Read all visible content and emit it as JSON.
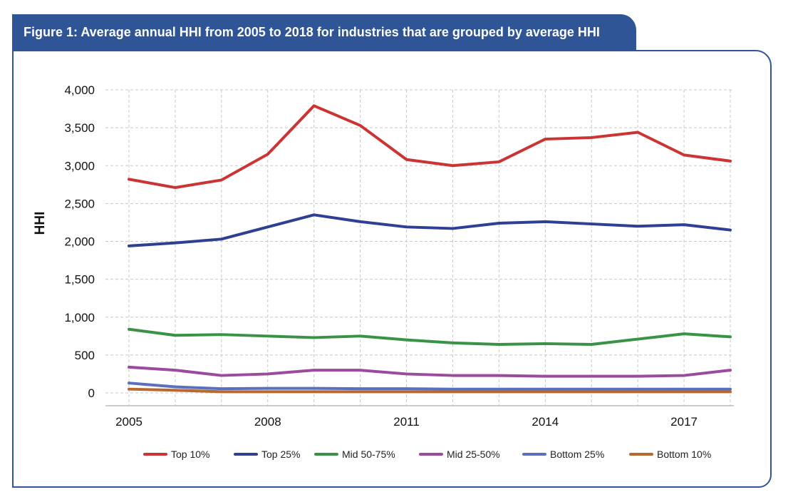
{
  "figure_title": "Figure 1: Average annual HHI from 2005 to 2018 for industries that are grouped by average HHI",
  "chart_data": {
    "type": "line",
    "title": "Figure 1: Average annual HHI from 2005 to 2018 for industries that are grouped by average HHI",
    "xlabel": "",
    "ylabel": "HHI",
    "x": [
      2005,
      2006,
      2007,
      2008,
      2009,
      2010,
      2011,
      2012,
      2013,
      2014,
      2015,
      2016,
      2017,
      2018
    ],
    "xticks": [
      "2005",
      "2008",
      "2011",
      "2014",
      "2017"
    ],
    "xlim": [
      2005,
      2018
    ],
    "yticks": [
      "0",
      "500",
      "1,000",
      "1,500",
      "2,000",
      "2,500",
      "3,000",
      "3,500",
      "4,000"
    ],
    "ylim": [
      0,
      4000
    ],
    "grid": true,
    "legend_position": "bottom",
    "series": [
      {
        "name": "Top 10%",
        "color": "#cc3333",
        "values": [
          2820,
          2710,
          2810,
          3150,
          3790,
          3530,
          3080,
          3000,
          3050,
          3350,
          3370,
          3440,
          3140,
          3060
        ]
      },
      {
        "name": "Top 25%",
        "color": "#2e3f94",
        "values": [
          1940,
          1980,
          2030,
          2190,
          2350,
          2260,
          2190,
          2170,
          2240,
          2260,
          2230,
          2200,
          2220,
          2150
        ]
      },
      {
        "name": "Mid 50-75%",
        "color": "#3a9247",
        "values": [
          840,
          760,
          770,
          750,
          730,
          750,
          700,
          660,
          640,
          650,
          640,
          710,
          780,
          740
        ]
      },
      {
        "name": "Mid 25-50%",
        "color": "#9b4a9e",
        "values": [
          340,
          300,
          230,
          250,
          300,
          300,
          250,
          230,
          230,
          220,
          220,
          220,
          230,
          300
        ]
      },
      {
        "name": "Bottom 25%",
        "color": "#5a6fbd",
        "values": [
          130,
          80,
          55,
          60,
          60,
          55,
          55,
          50,
          50,
          50,
          50,
          50,
          50,
          50
        ]
      },
      {
        "name": "Bottom 10%",
        "color": "#b86a2e",
        "values": [
          50,
          35,
          15,
          15,
          15,
          15,
          15,
          15,
          15,
          15,
          15,
          15,
          15,
          15
        ]
      }
    ]
  }
}
